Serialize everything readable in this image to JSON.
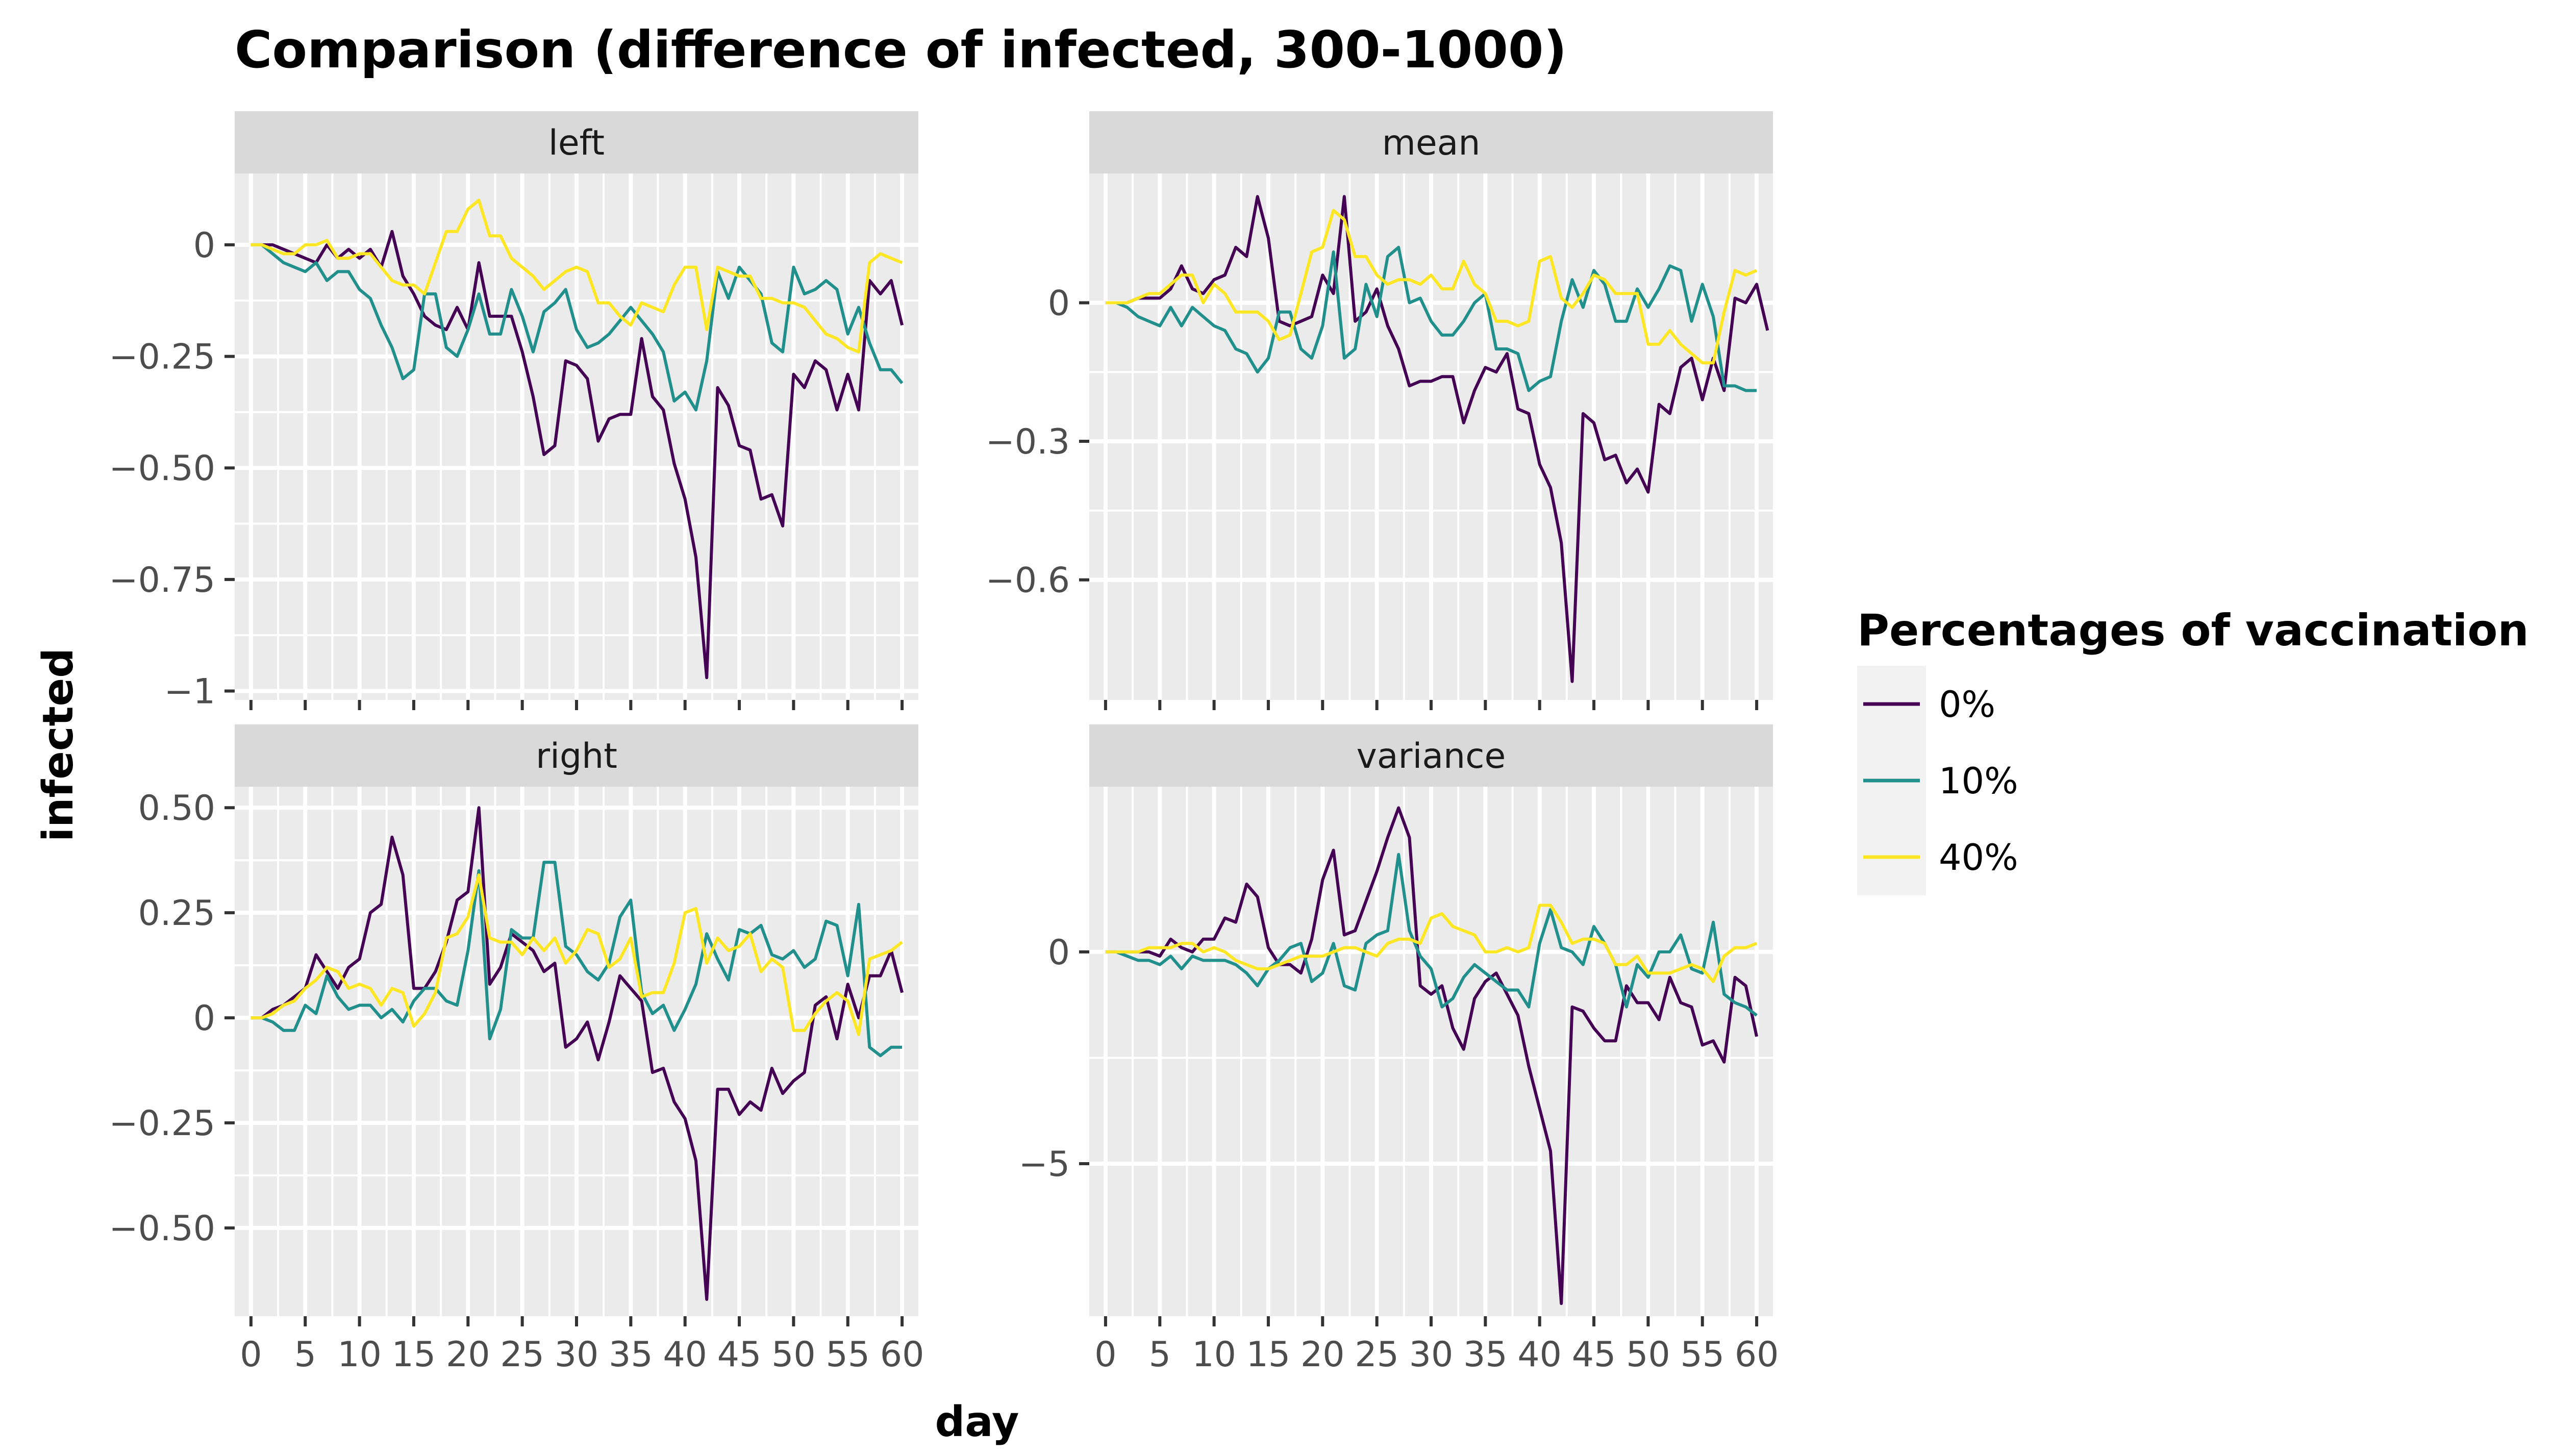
{
  "chart_data": {
    "type": "line",
    "title": "Comparison (difference of infected, 300-1000)",
    "xlabel": "day",
    "ylabel": "infected",
    "legend": {
      "title": "Percentages of vaccination",
      "placement": "right",
      "entries": [
        "0%",
        "10%",
        "40%"
      ]
    },
    "colors": {
      "0%": "#440154",
      "10%": "#21908c",
      "40%": "#fde725"
    },
    "grid": true,
    "x_ticks": [
      "0",
      "5",
      "10",
      "15",
      "20",
      "25",
      "30",
      "35",
      "40",
      "45",
      "50",
      "55",
      "60"
    ],
    "xlim": [
      -1.5,
      61.5
    ],
    "panels": [
      {
        "name": "left",
        "y_ticks": [
          {
            "v": 0,
            "label": "0"
          },
          {
            "v": -0.25,
            "label": "−0.25"
          },
          {
            "v": -0.5,
            "label": "−0.50"
          },
          {
            "v": -0.75,
            "label": "−0.75"
          },
          {
            "v": -1,
            "label": "−1"
          }
        ],
        "ylim": [
          -1.02,
          0.16
        ],
        "series": [
          {
            "name": "0%",
            "values": [
              0,
              0,
              0,
              -0.01,
              -0.02,
              -0.03,
              -0.04,
              0,
              -0.03,
              -0.01,
              -0.03,
              -0.01,
              -0.05,
              0.03,
              -0.07,
              -0.11,
              -0.16,
              -0.18,
              -0.19,
              -0.14,
              -0.19,
              -0.04,
              -0.16,
              -0.16,
              -0.16,
              -0.24,
              -0.34,
              -0.47,
              -0.45,
              -0.26,
              -0.27,
              -0.3,
              -0.44,
              -0.39,
              -0.38,
              -0.38,
              -0.21,
              -0.34,
              -0.37,
              -0.49,
              -0.57,
              -0.7,
              -0.97,
              -0.32,
              -0.36,
              -0.45,
              -0.46,
              -0.57,
              -0.56,
              -0.63,
              -0.29,
              -0.32,
              -0.26,
              -0.28,
              -0.37,
              -0.29,
              -0.37,
              -0.08,
              -0.11,
              -0.08,
              -0.18
            ]
          },
          {
            "name": "10%",
            "values": [
              0,
              0,
              -0.02,
              -0.04,
              -0.05,
              -0.06,
              -0.04,
              -0.08,
              -0.06,
              -0.06,
              -0.1,
              -0.12,
              -0.18,
              -0.23,
              -0.3,
              -0.28,
              -0.11,
              -0.11,
              -0.23,
              -0.25,
              -0.19,
              -0.11,
              -0.2,
              -0.2,
              -0.1,
              -0.16,
              -0.24,
              -0.15,
              -0.13,
              -0.1,
              -0.19,
              -0.23,
              -0.22,
              -0.2,
              -0.17,
              -0.14,
              -0.17,
              -0.2,
              -0.24,
              -0.35,
              -0.33,
              -0.37,
              -0.26,
              -0.06,
              -0.12,
              -0.05,
              -0.08,
              -0.11,
              -0.22,
              -0.24,
              -0.05,
              -0.11,
              -0.1,
              -0.08,
              -0.1,
              -0.2,
              -0.14,
              -0.22,
              -0.28,
              -0.28,
              -0.31
            ]
          },
          {
            "name": "40%",
            "values": [
              0,
              0,
              -0.01,
              -0.02,
              -0.02,
              0,
              0,
              0.01,
              -0.03,
              -0.03,
              -0.02,
              -0.02,
              -0.05,
              -0.08,
              -0.09,
              -0.09,
              -0.11,
              -0.04,
              0.03,
              0.03,
              0.08,
              0.1,
              0.02,
              0.02,
              -0.03,
              -0.05,
              -0.07,
              -0.1,
              -0.08,
              -0.06,
              -0.05,
              -0.06,
              -0.13,
              -0.13,
              -0.16,
              -0.18,
              -0.13,
              -0.14,
              -0.15,
              -0.09,
              -0.05,
              -0.05,
              -0.19,
              -0.05,
              -0.06,
              -0.07,
              -0.07,
              -0.12,
              -0.12,
              -0.13,
              -0.13,
              -0.14,
              -0.17,
              -0.2,
              -0.21,
              -0.23,
              -0.24,
              -0.04,
              -0.02,
              -0.03,
              -0.04
            ]
          }
        ]
      },
      {
        "name": "mean",
        "y_ticks": [
          {
            "v": 0,
            "label": "0"
          },
          {
            "v": -0.3,
            "label": "−0.3"
          },
          {
            "v": -0.6,
            "label": "−0.6"
          }
        ],
        "ylim": [
          -0.86,
          0.28
        ],
        "series": [
          {
            "name": "0%",
            "values": [
              0,
              0,
              0,
              0.01,
              0.01,
              0.01,
              0.03,
              0.08,
              0.03,
              0.02,
              0.05,
              0.06,
              0.12,
              0.1,
              0.23,
              0.14,
              -0.04,
              -0.05,
              -0.04,
              -0.03,
              0.06,
              0.02,
              0.23,
              -0.04,
              -0.02,
              0.03,
              -0.05,
              -0.1,
              -0.18,
              -0.17,
              -0.17,
              -0.16,
              -0.16,
              -0.26,
              -0.19,
              -0.14,
              -0.15,
              -0.11,
              -0.23,
              -0.24,
              -0.35,
              -0.4,
              -0.52,
              -0.82,
              -0.24,
              -0.26,
              -0.34,
              -0.33,
              -0.39,
              -0.36,
              -0.41,
              -0.22,
              -0.24,
              -0.14,
              -0.12,
              -0.21,
              -0.12,
              -0.19,
              0.01,
              0,
              0.04,
              -0.06
            ]
          },
          {
            "name": "10%",
            "values": [
              0,
              0,
              -0.01,
              -0.03,
              -0.04,
              -0.05,
              -0.01,
              -0.05,
              -0.01,
              -0.03,
              -0.05,
              -0.06,
              -0.1,
              -0.11,
              -0.15,
              -0.12,
              -0.02,
              -0.02,
              -0.1,
              -0.12,
              -0.05,
              0.11,
              -0.12,
              -0.1,
              0.04,
              -0.03,
              0.1,
              0.12,
              0,
              0.01,
              -0.04,
              -0.07,
              -0.07,
              -0.04,
              0,
              0.02,
              -0.1,
              -0.1,
              -0.11,
              -0.19,
              -0.17,
              -0.16,
              -0.04,
              0.05,
              -0.01,
              0.07,
              0.04,
              -0.04,
              -0.04,
              0.03,
              -0.01,
              0.03,
              0.08,
              0.07,
              -0.04,
              0.04,
              -0.03,
              -0.18,
              -0.18,
              -0.19,
              -0.19
            ]
          },
          {
            "name": "40%",
            "values": [
              0,
              0,
              0,
              0.01,
              0.02,
              0.02,
              0.04,
              0.06,
              0.06,
              0,
              0.04,
              0.02,
              -0.02,
              -0.02,
              -0.02,
              -0.04,
              -0.08,
              -0.07,
              0.02,
              0.11,
              0.12,
              0.2,
              0.18,
              0.1,
              0.1,
              0.06,
              0.04,
              0.05,
              0.05,
              0.04,
              0.06,
              0.03,
              0.03,
              0.09,
              0.04,
              0.02,
              -0.04,
              -0.04,
              -0.05,
              -0.04,
              0.09,
              0.1,
              0.01,
              -0.01,
              0.02,
              0.06,
              0.05,
              0.02,
              0.02,
              0.02,
              -0.09,
              -0.09,
              -0.06,
              -0.09,
              -0.11,
              -0.13,
              -0.13,
              -0.02,
              0.07,
              0.06,
              0.07
            ]
          }
        ]
      },
      {
        "name": "right",
        "y_ticks": [
          {
            "v": 0.5,
            "label": "0.50"
          },
          {
            "v": 0.25,
            "label": "0.25"
          },
          {
            "v": 0,
            "label": "0"
          },
          {
            "v": -0.25,
            "label": "−0.25"
          },
          {
            "v": -0.5,
            "label": "−0.50"
          }
        ],
        "ylim": [
          -0.71,
          0.55
        ],
        "series": [
          {
            "name": "0%",
            "values": [
              0,
              0,
              0.02,
              0.03,
              0.05,
              0.07,
              0.15,
              0.11,
              0.07,
              0.12,
              0.14,
              0.25,
              0.27,
              0.43,
              0.34,
              0.07,
              0.07,
              0.11,
              0.18,
              0.28,
              0.3,
              0.5,
              0.08,
              0.12,
              0.2,
              0.18,
              0.16,
              0.11,
              0.13,
              -0.07,
              -0.05,
              -0.01,
              -0.1,
              -0.01,
              0.1,
              0.07,
              0.04,
              -0.13,
              -0.12,
              -0.2,
              -0.24,
              -0.34,
              -0.67,
              -0.17,
              -0.17,
              -0.23,
              -0.2,
              -0.22,
              -0.12,
              -0.18,
              -0.15,
              -0.13,
              0.03,
              0.05,
              -0.05,
              0.08,
              0,
              0.1,
              0.1,
              0.16,
              0.06
            ]
          },
          {
            "name": "10%",
            "values": [
              0,
              0,
              -0.01,
              -0.03,
              -0.03,
              0.03,
              0.01,
              0.1,
              0.05,
              0.02,
              0.03,
              0.03,
              0,
              0.02,
              -0.01,
              0.04,
              0.07,
              0.07,
              0.04,
              0.03,
              0.16,
              0.35,
              -0.05,
              0.02,
              0.21,
              0.19,
              0.19,
              0.37,
              0.37,
              0.17,
              0.15,
              0.11,
              0.09,
              0.13,
              0.24,
              0.28,
              0.06,
              0.01,
              0.03,
              -0.03,
              0.02,
              0.08,
              0.2,
              0.14,
              0.09,
              0.21,
              0.2,
              0.22,
              0.15,
              0.14,
              0.16,
              0.12,
              0.14,
              0.23,
              0.22,
              0.1,
              0.27,
              -0.07,
              -0.09,
              -0.07,
              -0.07
            ]
          },
          {
            "name": "40%",
            "values": [
              0,
              0,
              0.01,
              0.03,
              0.04,
              0.07,
              0.09,
              0.12,
              0.11,
              0.07,
              0.08,
              0.07,
              0.03,
              0.07,
              0.06,
              -0.02,
              0.01,
              0.06,
              0.19,
              0.2,
              0.24,
              0.34,
              0.19,
              0.18,
              0.18,
              0.15,
              0.19,
              0.16,
              0.19,
              0.13,
              0.16,
              0.21,
              0.2,
              0.12,
              0.14,
              0.19,
              0.05,
              0.06,
              0.06,
              0.13,
              0.25,
              0.26,
              0.13,
              0.19,
              0.16,
              0.17,
              0.2,
              0.11,
              0.14,
              0.12,
              -0.03,
              -0.03,
              0.01,
              0.04,
              0.06,
              0.04,
              -0.04,
              0.14,
              0.15,
              0.16,
              0.18
            ]
          }
        ]
      },
      {
        "name": "variance",
        "y_ticks": [
          {
            "v": 0,
            "label": "0"
          },
          {
            "v": -5,
            "label": "−5"
          }
        ],
        "ylim": [
          -8.6,
          3.9
        ],
        "series": [
          {
            "name": "0%",
            "values": [
              0,
              0,
              0,
              0,
              0,
              -0.1,
              0.3,
              0.1,
              0,
              0.3,
              0.3,
              0.8,
              0.7,
              1.6,
              1.3,
              0.1,
              -0.3,
              -0.3,
              -0.5,
              0.3,
              1.7,
              2.4,
              0.4,
              0.5,
              1.2,
              1.9,
              2.7,
              3.4,
              2.7,
              -0.8,
              -1,
              -0.8,
              -1.8,
              -2.3,
              -1.1,
              -0.7,
              -0.5,
              -1,
              -1.5,
              -2.7,
              -3.7,
              -4.7,
              -8.3,
              -1.3,
              -1.4,
              -1.8,
              -2.1,
              -2.1,
              -0.8,
              -1.2,
              -1.2,
              -1.6,
              -0.6,
              -1.2,
              -1.3,
              -2.2,
              -2.1,
              -2.6,
              -0.6,
              -0.8,
              -2
            ]
          },
          {
            "name": "10%",
            "values": [
              0,
              0,
              -0.1,
              -0.2,
              -0.2,
              -0.3,
              -0.1,
              -0.4,
              -0.1,
              -0.2,
              -0.2,
              -0.2,
              -0.3,
              -0.5,
              -0.8,
              -0.4,
              -0.2,
              0.1,
              0.2,
              -0.7,
              -0.5,
              0.2,
              -0.8,
              -0.9,
              0.2,
              0.4,
              0.5,
              2.3,
              0.5,
              -0.1,
              -0.4,
              -1.3,
              -1.1,
              -0.6,
              -0.3,
              -0.5,
              -0.7,
              -0.9,
              -0.9,
              -1.3,
              0.2,
              1,
              0.1,
              0,
              -0.3,
              0.6,
              0.2,
              -0.3,
              -1.3,
              -0.3,
              -0.6,
              0,
              0,
              0.4,
              -0.4,
              -0.5,
              0.7,
              -1,
              -1.2,
              -1.3,
              -1.5
            ]
          },
          {
            "name": "40%",
            "values": [
              0,
              0,
              0,
              0,
              0.1,
              0.1,
              0.1,
              0.2,
              0.2,
              0,
              0.1,
              0,
              -0.2,
              -0.3,
              -0.4,
              -0.4,
              -0.3,
              -0.2,
              -0.1,
              -0.1,
              -0.1,
              0,
              0.1,
              0.1,
              0,
              -0.1,
              0.2,
              0.3,
              0.3,
              0.2,
              0.8,
              0.9,
              0.6,
              0.5,
              0.4,
              0,
              0,
              0.1,
              0,
              0.1,
              1.1,
              1.1,
              0.7,
              0.2,
              0.3,
              0.3,
              0.2,
              -0.3,
              -0.3,
              -0.1,
              -0.5,
              -0.5,
              -0.5,
              -0.4,
              -0.3,
              -0.4,
              -0.7,
              -0.1,
              0.1,
              0.1,
              0.2
            ]
          }
        ]
      }
    ]
  }
}
